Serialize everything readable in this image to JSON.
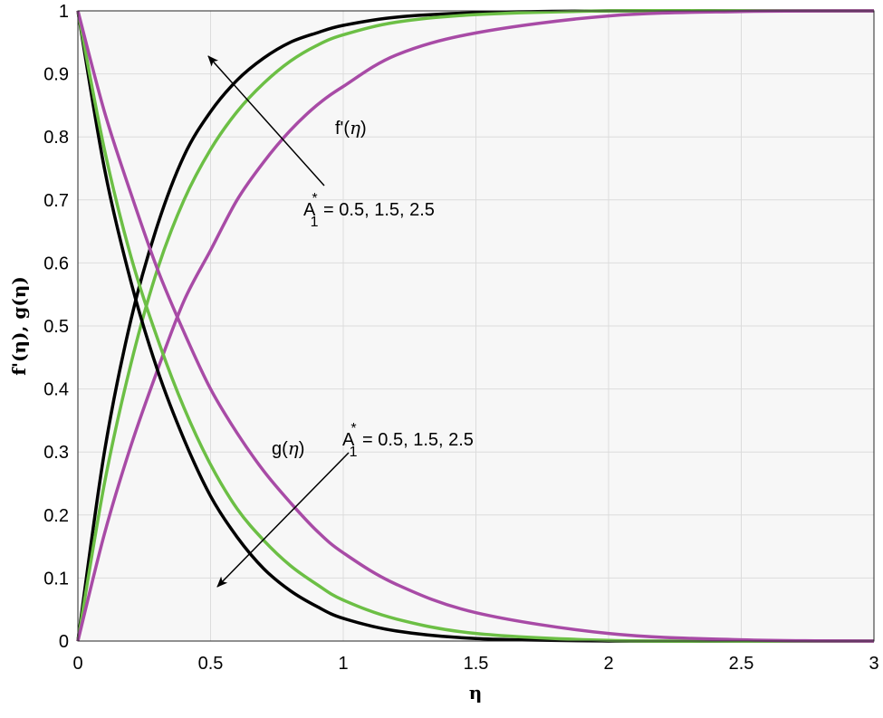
{
  "chart_data": {
    "type": "line",
    "title": "",
    "xlabel": "η",
    "ylabel": "f'(η), g(η)",
    "xlim": [
      0,
      3
    ],
    "ylim": [
      0,
      1
    ],
    "xticks": [
      0,
      0.5,
      1,
      1.5,
      2,
      2.5,
      3
    ],
    "yticks": [
      0,
      0.1,
      0.2,
      0.3,
      0.4,
      0.5,
      0.6,
      0.7,
      0.8,
      0.9,
      1
    ],
    "xtick_labels": [
      "0",
      "0.5",
      "1",
      "1.5",
      "2",
      "2.5",
      "3"
    ],
    "ytick_labels": [
      "0",
      "0.1",
      "0.2",
      "0.3",
      "0.4",
      "0.5",
      "0.6",
      "0.7",
      "0.8",
      "0.9",
      "1"
    ],
    "grid": true,
    "plot_background": "#f7f7f7",
    "series": [
      {
        "group": "f'(η)",
        "param": "0.5",
        "color": "#000000",
        "x": [
          0,
          0.1,
          0.2,
          0.3,
          0.4,
          0.5,
          0.6,
          0.7,
          0.8,
          0.9,
          1.0,
          1.2,
          1.5,
          2.0,
          2.5,
          3.0
        ],
        "y": [
          0,
          0.3,
          0.51,
          0.66,
          0.77,
          0.84,
          0.89,
          0.925,
          0.95,
          0.965,
          0.977,
          0.99,
          0.997,
          1.0,
          1.0,
          1.0
        ]
      },
      {
        "group": "f'(η)",
        "param": "1.5",
        "color": "#6cbf45",
        "x": [
          0,
          0.1,
          0.2,
          0.3,
          0.4,
          0.5,
          0.6,
          0.7,
          0.8,
          0.9,
          1.0,
          1.2,
          1.5,
          2.0,
          2.5,
          3.0
        ],
        "y": [
          0,
          0.25,
          0.44,
          0.59,
          0.7,
          0.78,
          0.84,
          0.885,
          0.92,
          0.945,
          0.962,
          0.982,
          0.994,
          1.0,
          1.0,
          1.0
        ]
      },
      {
        "group": "f'(η)",
        "param": "2.5",
        "color": "#a84ba6",
        "x": [
          0,
          0.1,
          0.2,
          0.3,
          0.4,
          0.5,
          0.6,
          0.7,
          0.8,
          0.9,
          1.0,
          1.2,
          1.5,
          2.0,
          2.5,
          3.0
        ],
        "y": [
          0,
          0.17,
          0.31,
          0.43,
          0.54,
          0.62,
          0.7,
          0.76,
          0.81,
          0.85,
          0.88,
          0.93,
          0.965,
          0.992,
          0.999,
          1.0
        ]
      },
      {
        "group": "g(η)",
        "param": "0.5",
        "color": "#000000",
        "x": [
          0,
          0.1,
          0.2,
          0.3,
          0.4,
          0.5,
          0.6,
          0.7,
          0.8,
          0.9,
          1.0,
          1.2,
          1.5,
          2.0,
          2.5,
          3.0
        ],
        "y": [
          1,
          0.75,
          0.57,
          0.43,
          0.32,
          0.23,
          0.165,
          0.115,
          0.08,
          0.055,
          0.036,
          0.016,
          0.004,
          0.0,
          0.0,
          0.0
        ]
      },
      {
        "group": "g(η)",
        "param": "1.5",
        "color": "#6cbf45",
        "x": [
          0,
          0.1,
          0.2,
          0.3,
          0.4,
          0.5,
          0.6,
          0.7,
          0.8,
          0.9,
          1.0,
          1.2,
          1.5,
          2.0,
          2.5,
          3.0
        ],
        "y": [
          1,
          0.78,
          0.61,
          0.48,
          0.37,
          0.28,
          0.21,
          0.16,
          0.12,
          0.09,
          0.065,
          0.035,
          0.012,
          0.001,
          0.0,
          0.0
        ]
      },
      {
        "group": "g(η)",
        "param": "2.5",
        "color": "#a84ba6",
        "x": [
          0,
          0.1,
          0.2,
          0.3,
          0.4,
          0.5,
          0.6,
          0.7,
          0.8,
          0.9,
          1.0,
          1.2,
          1.5,
          2.0,
          2.5,
          3.0
        ],
        "y": [
          1,
          0.84,
          0.71,
          0.59,
          0.49,
          0.4,
          0.33,
          0.27,
          0.22,
          0.175,
          0.14,
          0.09,
          0.045,
          0.012,
          0.002,
          0.0
        ]
      }
    ],
    "annotations": [
      {
        "label_main": "f'(",
        "label_sym": "η",
        "label_end": ")"
      },
      {
        "label_main": "A",
        "label_sup": "*",
        "label_sub": "1",
        "label_rest": " = 0.5, 1.5, 2.5"
      },
      {
        "label_main": "g(",
        "label_sym": "η",
        "label_end": ")"
      },
      {
        "label_main": "A",
        "label_sup": "*",
        "label_sub": "1",
        "label_rest": " = 0.5, 1.5, 2.5"
      }
    ]
  }
}
